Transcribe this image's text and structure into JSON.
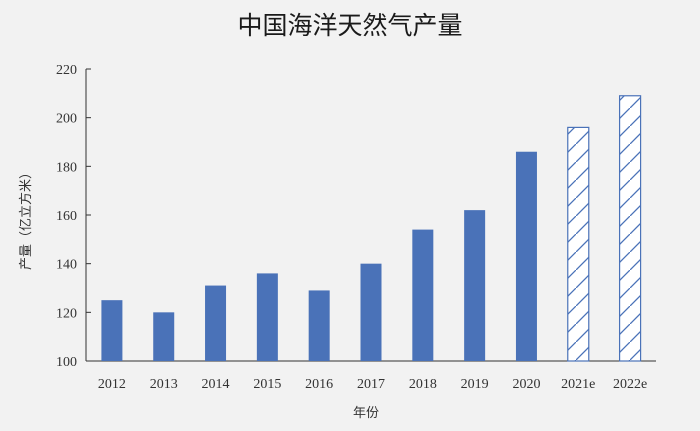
{
  "chart_data": {
    "type": "bar",
    "title": "中国海洋天然气产量",
    "xlabel": "年份",
    "ylabel": "产量（亿立方米）",
    "categories": [
      "2012",
      "2013",
      "2014",
      "2015",
      "2016",
      "2017",
      "2018",
      "2019",
      "2020",
      "2021e",
      "2022e"
    ],
    "values": [
      125,
      120,
      131,
      136,
      129,
      140,
      154,
      162,
      186,
      196,
      209
    ],
    "estimated": [
      false,
      false,
      false,
      false,
      false,
      false,
      false,
      false,
      false,
      true,
      true
    ],
    "ylim": [
      100,
      220
    ],
    "yticks": [
      100,
      120,
      140,
      160,
      180,
      200,
      220
    ],
    "grid": false,
    "colors": {
      "bar": "#4a72b8",
      "estimate_stroke": "#4a72b8",
      "estimate_fill": "#ffffff",
      "axis": "#333333"
    }
  }
}
